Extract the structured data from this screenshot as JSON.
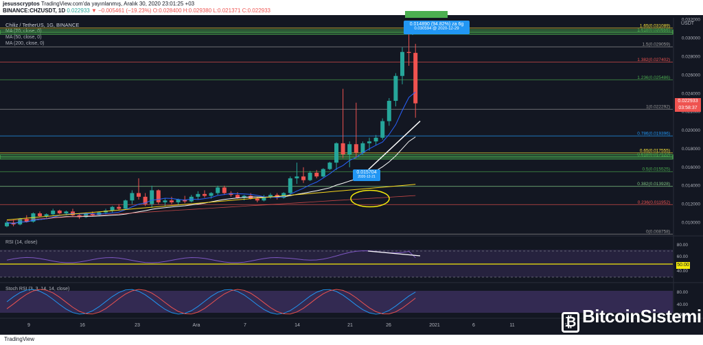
{
  "header": {
    "line1_user": "jesusscryptos",
    "line1_rest": " TradingView.com'da yayınlanmış, Aralık 30, 2020 23:01:25 +03",
    "symbol": "BINANCE:CHZUSDT, 1D",
    "last": "0.022933",
    "change": "▼ −0.005461 (−19.23%)",
    "ohlc": "O:0.028400 H:0.029380 L:0.021371 C:0.022933"
  },
  "legend": {
    "pair": "Chiliz / TetherUS, 1G, BINANCE",
    "ma20": "MA (20, close, 0)",
    "ma50": "MA (50, close, 0)",
    "ma200": "MA (200, close, 0)",
    "rsi": "RSI (14, close)",
    "stoch": "Stoch RSI (3, 3, 14, 14, close)"
  },
  "axis_currency": "USDT",
  "price_tag": {
    "price": "0.022933",
    "timer": "03:58:37"
  },
  "measure_high": {
    "value": "0.014890 (94.82%) za 6g",
    "sub": "0.030594 @ 2020-12-29"
  },
  "measure_low": {
    "value": "0.015704",
    "sub": "2020-12-21"
  },
  "rsi_tag": "50.00",
  "brand": "BitcoinSistemi",
  "footer": "TradingView",
  "colors": {
    "up": "#26a69a",
    "down": "#ef5350",
    "ma20": "#2962ff",
    "ma50": "#ffffff",
    "ma200": "#f9d71c",
    "rsi": "#7e57c2",
    "stoch_k": "#2196f3",
    "stoch_d": "#ef5350",
    "highlight": "#f5ea0c"
  },
  "chart_data": {
    "type": "candlestick",
    "x_tick_labels": [
      "9",
      "16",
      "23",
      "Ara",
      "7",
      "14",
      "21",
      "26",
      "2021",
      "6",
      "11",
      "18"
    ],
    "y_ticks": [
      0.01,
      0.012,
      0.014,
      0.016,
      0.018,
      0.02,
      0.022,
      0.024,
      0.026,
      0.028,
      0.03,
      0.032
    ],
    "ylim": [
      0.0087,
      0.0322
    ],
    "fib_levels": [
      {
        "ratio": "1.65",
        "value": 0.031089,
        "label": "1.65(0.031089)"
      },
      {
        "ratio": "1.618",
        "value": 0.030656,
        "label": "1.618(0.030656)"
      },
      {
        "ratio": "1.5",
        "value": 0.029059,
        "label": "1.5(0.029059)"
      },
      {
        "ratio": "1.382",
        "value": 0.027402,
        "label": "1.382(0.027402)"
      },
      {
        "ratio": "1.236",
        "value": 0.025486,
        "label": "1.236(0.025486)"
      },
      {
        "ratio": "1",
        "value": 0.022292,
        "label": "1(0.022292)"
      },
      {
        "ratio": "0.786",
        "value": 0.019396,
        "label": "0.786(0.019396)"
      },
      {
        "ratio": "0.65",
        "value": 0.017555,
        "label": "0.65(0.017555)"
      },
      {
        "ratio": "0.618",
        "value": 0.017122,
        "label": "0.618(0.017122)"
      },
      {
        "ratio": "0.5",
        "value": 0.015525,
        "label": "0.5(0.015525)"
      },
      {
        "ratio": "0.382",
        "value": 0.013928,
        "label": "0.382(0.013928)"
      },
      {
        "ratio": "0.236",
        "value": 0.011952,
        "label": "0.236(0.011952)"
      },
      {
        "ratio": "0",
        "value": 0.008758,
        "label": "0(0.008758)"
      }
    ],
    "candles": [
      [
        0.0096,
        0.0102,
        0.0095,
        0.01
      ],
      [
        0.01,
        0.0103,
        0.0096,
        0.0098
      ],
      [
        0.0098,
        0.0105,
        0.0097,
        0.0104
      ],
      [
        0.0104,
        0.0108,
        0.01,
        0.0101
      ],
      [
        0.0101,
        0.0111,
        0.01,
        0.011
      ],
      [
        0.011,
        0.0112,
        0.0106,
        0.0107
      ],
      [
        0.0107,
        0.011,
        0.0105,
        0.0109
      ],
      [
        0.0109,
        0.0115,
        0.0108,
        0.0113
      ],
      [
        0.0113,
        0.0114,
        0.0109,
        0.011
      ],
      [
        0.011,
        0.0113,
        0.0108,
        0.0112
      ],
      [
        0.0112,
        0.0115,
        0.0107,
        0.0108
      ],
      [
        0.0108,
        0.011,
        0.0104,
        0.0106
      ],
      [
        0.0106,
        0.0111,
        0.0105,
        0.011
      ],
      [
        0.011,
        0.0112,
        0.0107,
        0.0108
      ],
      [
        0.0108,
        0.0112,
        0.0107,
        0.0111
      ],
      [
        0.0111,
        0.0115,
        0.0109,
        0.0113
      ],
      [
        0.0113,
        0.0118,
        0.0111,
        0.0117
      ],
      [
        0.0117,
        0.012,
        0.0113,
        0.0115
      ],
      [
        0.0115,
        0.0125,
        0.0114,
        0.0124
      ],
      [
        0.0124,
        0.0135,
        0.012,
        0.0132
      ],
      [
        0.0132,
        0.0148,
        0.0125,
        0.0128
      ],
      [
        0.0128,
        0.0132,
        0.0118,
        0.012
      ],
      [
        0.012,
        0.014,
        0.0116,
        0.0135
      ],
      [
        0.0135,
        0.0136,
        0.012,
        0.0122
      ],
      [
        0.0122,
        0.0126,
        0.0118,
        0.0124
      ],
      [
        0.0124,
        0.0128,
        0.012,
        0.0122
      ],
      [
        0.0122,
        0.0126,
        0.0119,
        0.0125
      ],
      [
        0.0125,
        0.0129,
        0.0121,
        0.0123
      ],
      [
        0.0123,
        0.013,
        0.0122,
        0.0128
      ],
      [
        0.0128,
        0.0134,
        0.0125,
        0.0131
      ],
      [
        0.0131,
        0.0135,
        0.0127,
        0.0129
      ],
      [
        0.0129,
        0.0133,
        0.0126,
        0.0132
      ],
      [
        0.0132,
        0.014,
        0.013,
        0.0138
      ],
      [
        0.0138,
        0.014,
        0.013,
        0.0132
      ],
      [
        0.0132,
        0.0134,
        0.0128,
        0.013
      ],
      [
        0.013,
        0.0133,
        0.0126,
        0.0127
      ],
      [
        0.0127,
        0.013,
        0.0124,
        0.0129
      ],
      [
        0.0129,
        0.0132,
        0.0125,
        0.0126
      ],
      [
        0.0126,
        0.0128,
        0.0122,
        0.0124
      ],
      [
        0.0124,
        0.013,
        0.0123,
        0.0128
      ],
      [
        0.0128,
        0.0132,
        0.0126,
        0.013
      ],
      [
        0.013,
        0.0132,
        0.0125,
        0.0127
      ],
      [
        0.0127,
        0.0133,
        0.0126,
        0.0132
      ],
      [
        0.0132,
        0.015,
        0.013,
        0.0148
      ],
      [
        0.0148,
        0.0165,
        0.0142,
        0.015
      ],
      [
        0.015,
        0.016,
        0.0143,
        0.0146
      ],
      [
        0.0146,
        0.0156,
        0.0145,
        0.0154
      ],
      [
        0.0154,
        0.0157,
        0.0148,
        0.015
      ],
      [
        0.015,
        0.0159,
        0.0149,
        0.0158
      ],
      [
        0.0158,
        0.0166,
        0.0157,
        0.0165
      ],
      [
        0.0165,
        0.0187,
        0.0157,
        0.0186
      ],
      [
        0.0186,
        0.0245,
        0.017,
        0.0174
      ],
      [
        0.0174,
        0.0188,
        0.016,
        0.0185
      ],
      [
        0.0185,
        0.023,
        0.017,
        0.0176
      ],
      [
        0.0176,
        0.0188,
        0.0173,
        0.0186
      ],
      [
        0.0186,
        0.0192,
        0.0178,
        0.0188
      ],
      [
        0.0188,
        0.0195,
        0.0184,
        0.0192
      ],
      [
        0.0192,
        0.0213,
        0.019,
        0.021
      ],
      [
        0.021,
        0.0235,
        0.0205,
        0.0232
      ],
      [
        0.0232,
        0.0262,
        0.0226,
        0.0259
      ],
      [
        0.0259,
        0.029,
        0.025,
        0.0285
      ],
      [
        0.0285,
        0.03059,
        0.027,
        0.0284
      ],
      [
        0.0284,
        0.02938,
        0.02137,
        0.02293
      ]
    ],
    "ma50_end": 0.018,
    "ma200_end": 0.0142,
    "ma20_end": 0.013,
    "rsi_levels": [
      70,
      50,
      30
    ],
    "rsi_axis": [
      80.0,
      60.0,
      40.0
    ],
    "stoch_axis": [
      80.0,
      40.0,
      0.0
    ]
  }
}
